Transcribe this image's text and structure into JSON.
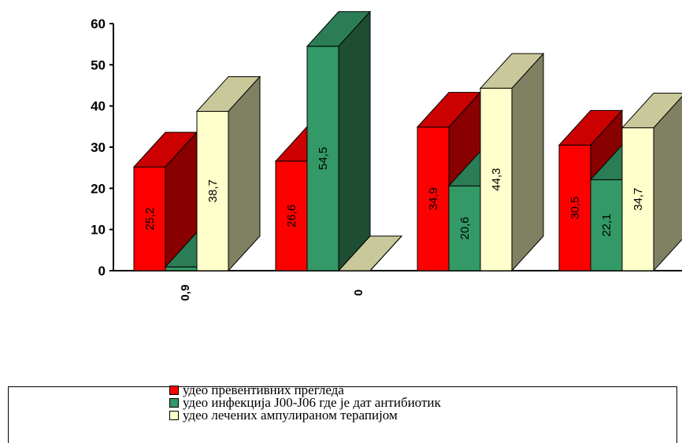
{
  "chart_data": {
    "type": "bar",
    "title": "",
    "xlabel": "",
    "ylabel": "",
    "ylim": [
      0,
      60
    ],
    "yticks": [
      "0",
      "10",
      "20",
      "30",
      "40",
      "50",
      "60"
    ],
    "categories": [
      "",
      "",
      "",
      ""
    ],
    "series": [
      {
        "name": "удео превентивних прегледа",
        "values": [
          25.2,
          26.6,
          34.9,
          30.5
        ],
        "labels": [
          "25,2",
          "26,6",
          "34,9",
          "30,5"
        ]
      },
      {
        "name": "удео инфекција J00-J06 где је дат антибиотик",
        "values": [
          0.9,
          54.5,
          20.6,
          22.1
        ],
        "labels": [
          "0,9",
          "54,5",
          "20,6",
          "22,1"
        ]
      },
      {
        "name": "удео лечених ампулираном терапијом",
        "values": [
          38.7,
          0,
          44.3,
          34.7
        ],
        "labels": [
          "38,7",
          "0",
          "44,3",
          "34,7"
        ]
      }
    ],
    "grid": false,
    "legend_position": "bottom",
    "style": "3d"
  },
  "colors": {
    "series": [
      {
        "front": "#ff0000",
        "top": "#cc0000",
        "side": "#880000"
      },
      {
        "front": "#339966",
        "top": "#2b7d55",
        "side": "#1e4d33"
      },
      {
        "front": "#ffffcc",
        "top": "#c8c89a",
        "side": "#808062"
      }
    ]
  },
  "legend": {
    "items": [
      {
        "label": "удео превентивних прегледа",
        "color": "#ff0000"
      },
      {
        "label": "удео инфекција J00-J06 где је дат антибиотик",
        "color": "#339966"
      },
      {
        "label": "удео лечених ампулираном терапијом",
        "color": "#ffffcc"
      }
    ]
  }
}
